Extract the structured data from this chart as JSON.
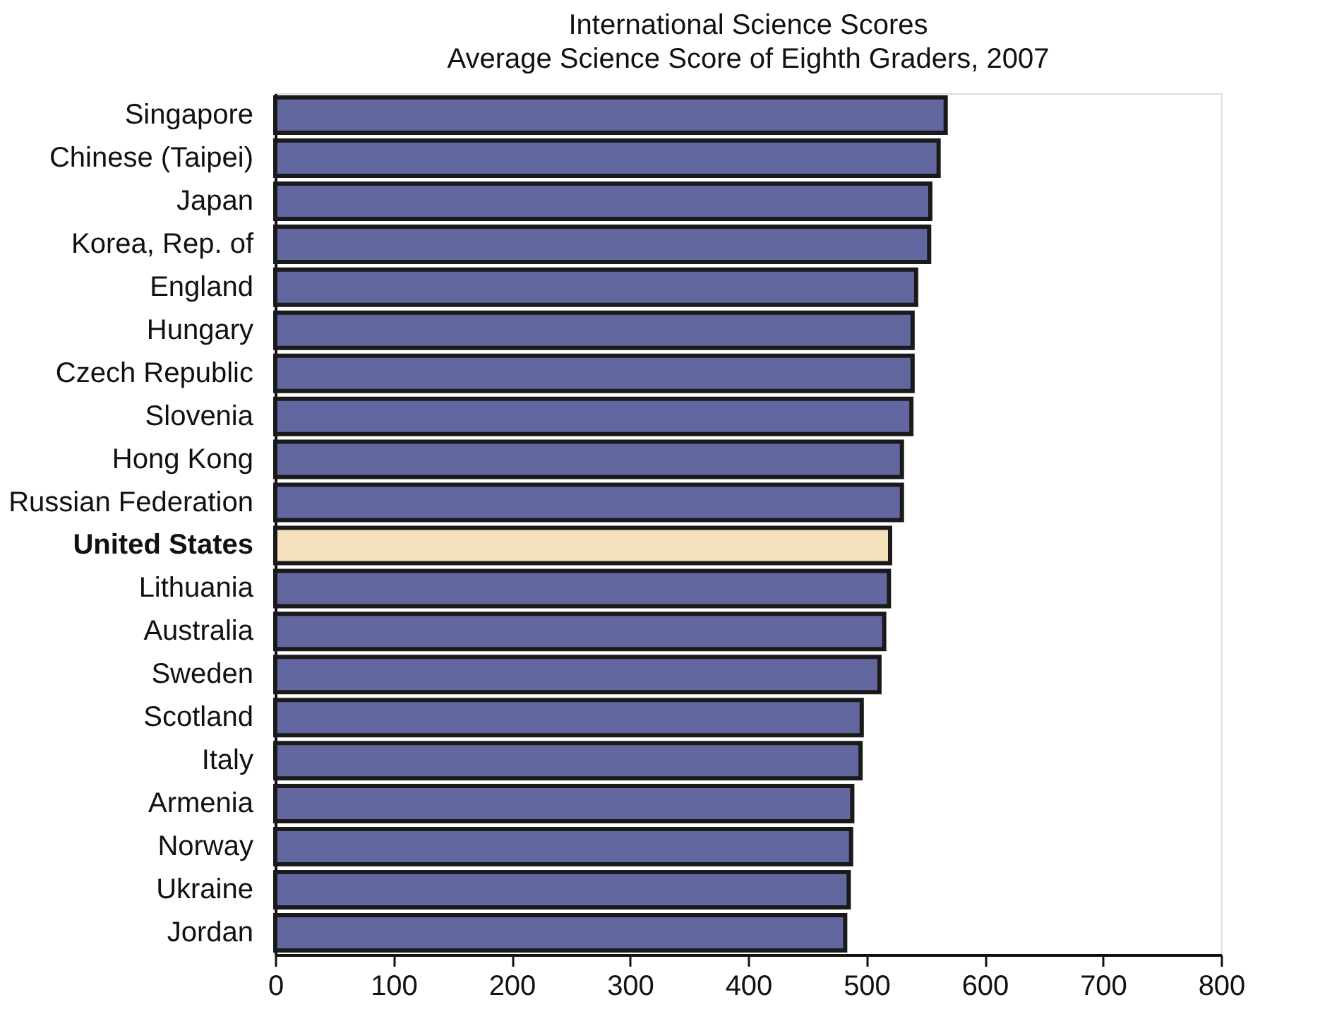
{
  "chart_data": {
    "type": "bar",
    "orientation": "horizontal",
    "title": "International Science Scores",
    "subtitle": "Average Science Score of Eighth Graders, 2007",
    "categories": [
      "Singapore",
      "Chinese (Taipei)",
      "Japan",
      "Korea, Rep. of",
      "England",
      "Hungary",
      "Czech Republic",
      "Slovenia",
      "Hong Kong",
      "Russian Federation",
      "United States",
      "Lithuania",
      "Australia",
      "Sweden",
      "Scotland",
      "Italy",
      "Armenia",
      "Norway",
      "Ukraine",
      "Jordan"
    ],
    "values": [
      567,
      561,
      554,
      553,
      542,
      539,
      539,
      538,
      530,
      530,
      520,
      519,
      515,
      511,
      496,
      495,
      488,
      487,
      485,
      482
    ],
    "colors": [
      "#63679f",
      "#63679f",
      "#63679f",
      "#63679f",
      "#63679f",
      "#63679f",
      "#63679f",
      "#63679f",
      "#63679f",
      "#63679f",
      "#f5e2bc",
      "#63679f",
      "#63679f",
      "#63679f",
      "#63679f",
      "#63679f",
      "#63679f",
      "#63679f",
      "#63679f",
      "#63679f"
    ],
    "xlim": [
      0,
      800
    ],
    "xticks": [
      0,
      100,
      200,
      300,
      400,
      500,
      600,
      700,
      800
    ],
    "grid": false,
    "legend": false
  }
}
